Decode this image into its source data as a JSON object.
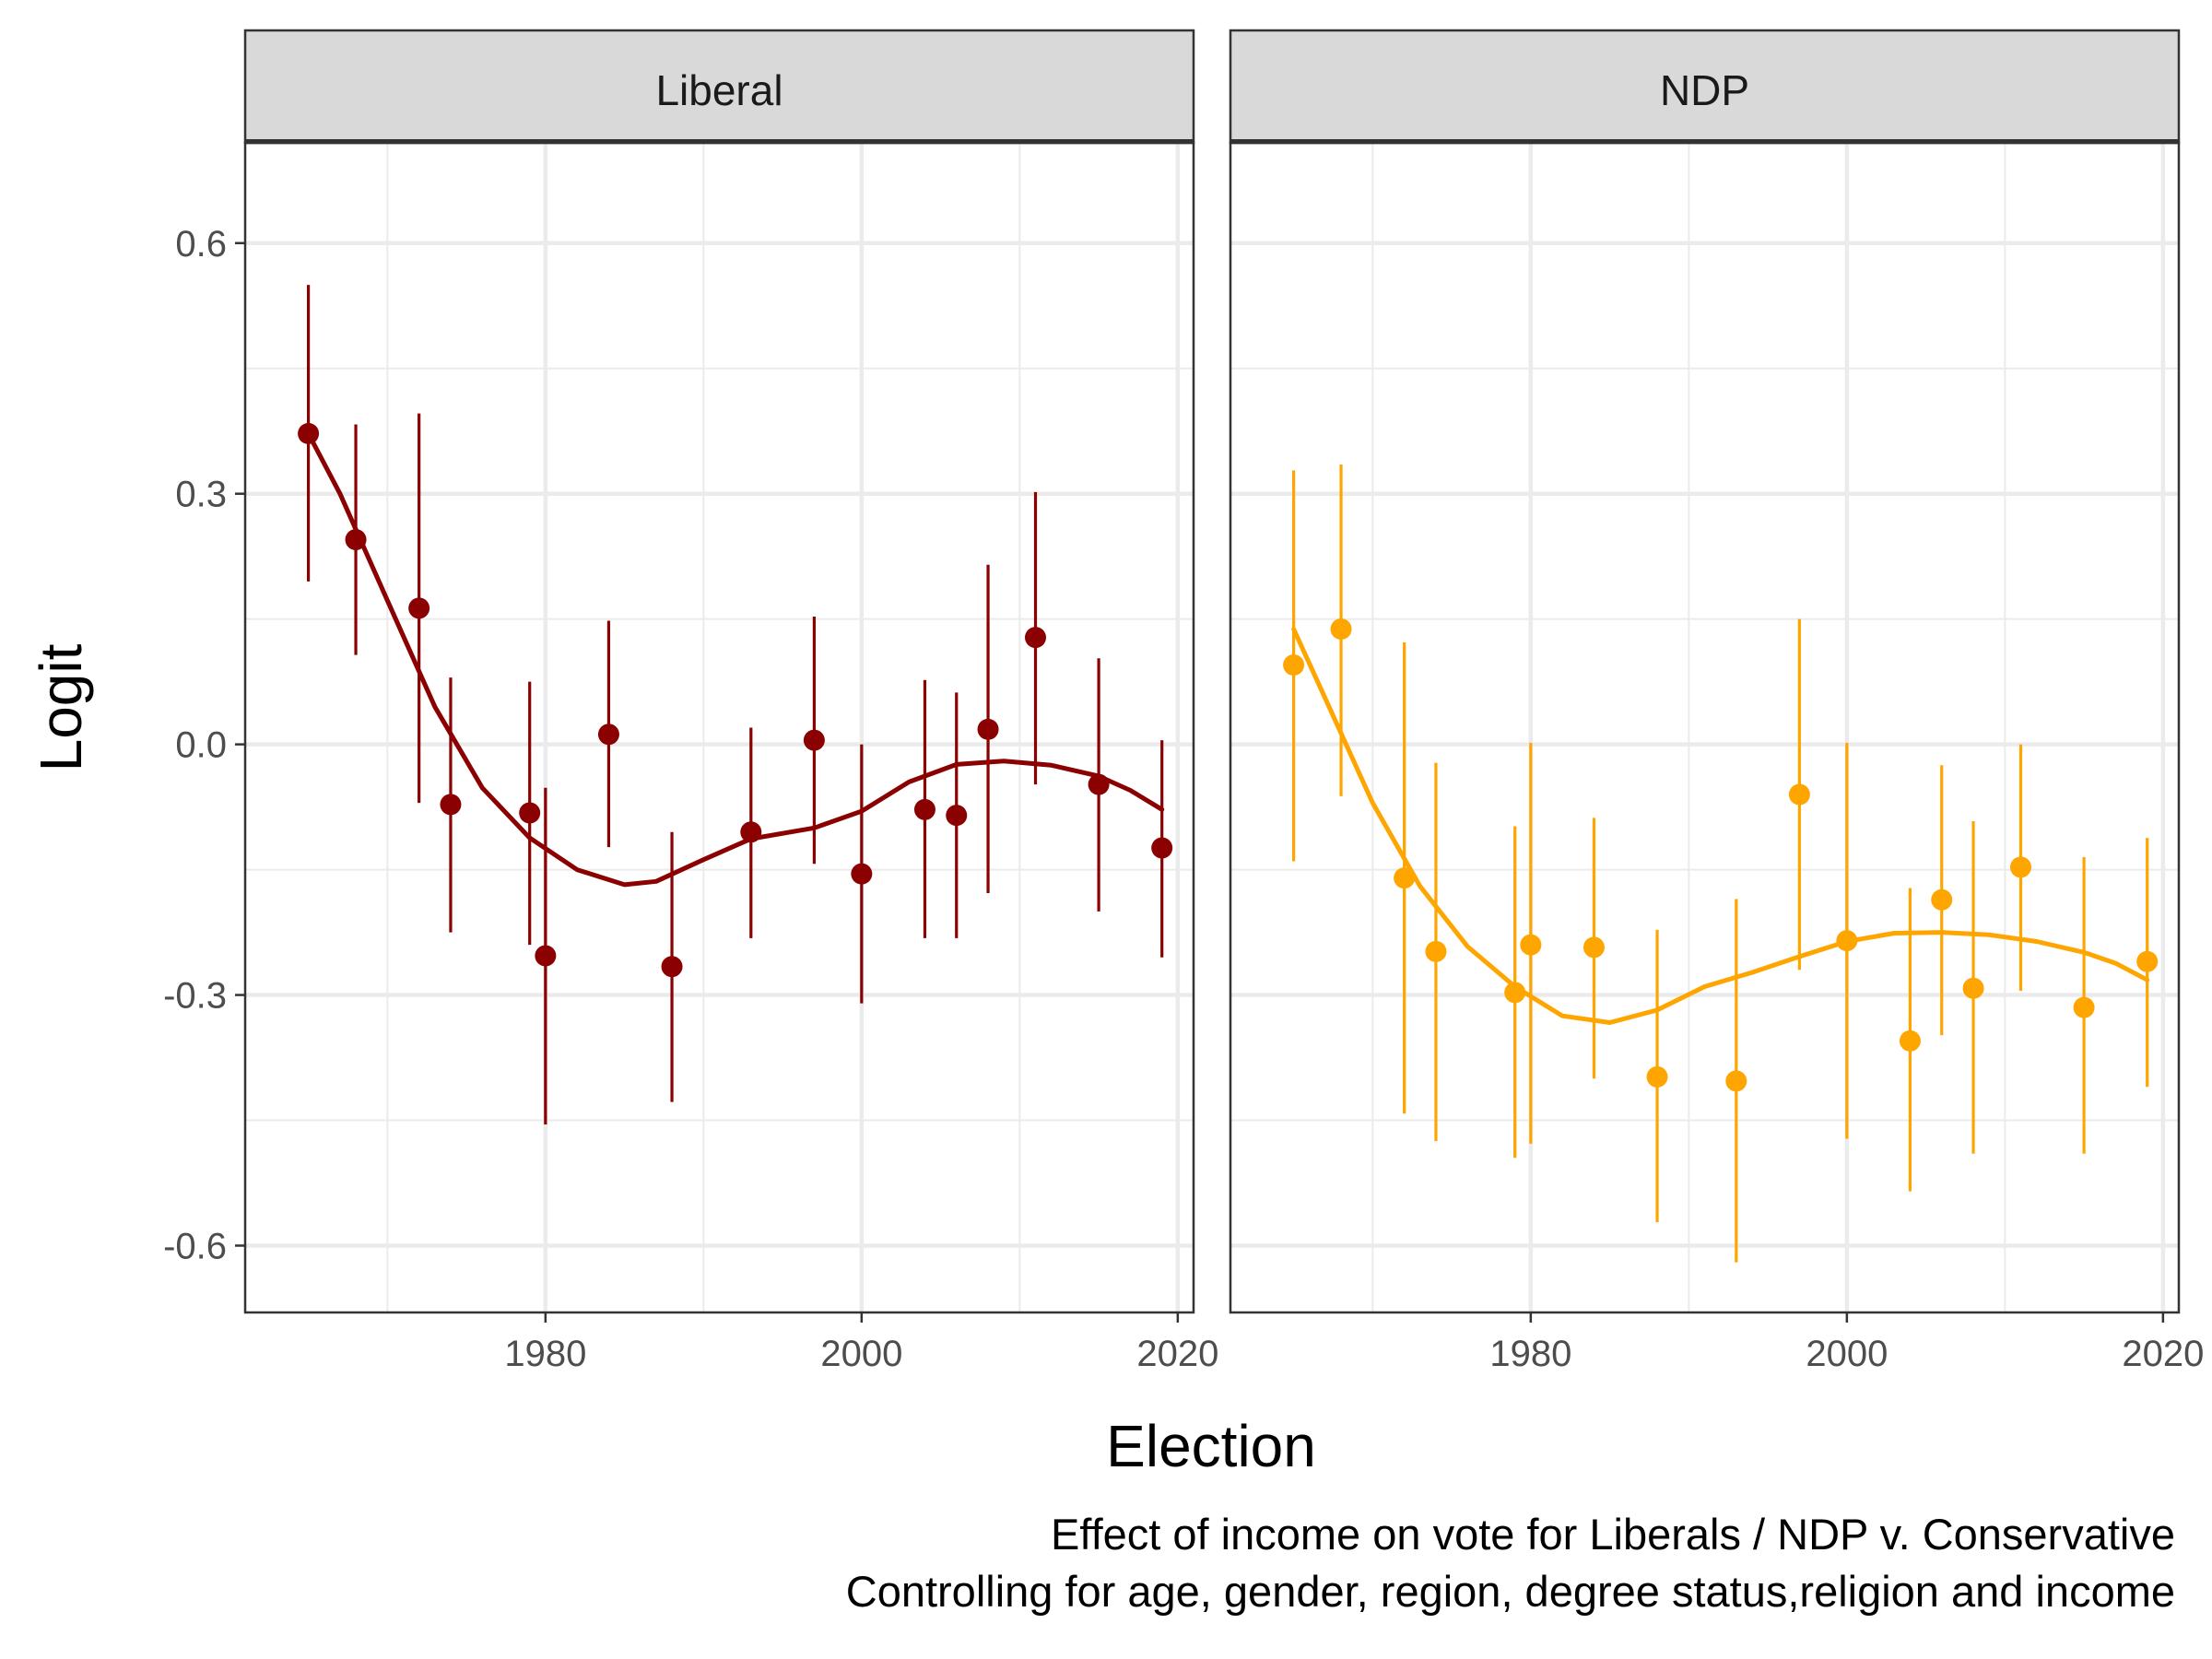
{
  "chart_data": {
    "type": "scatter",
    "xlabel": "Election",
    "ylabel": "Logit",
    "xlim": [
      1961,
      2021
    ],
    "ylim": [
      -0.68,
      0.72
    ],
    "x_ticks": [
      1980,
      2000,
      2020
    ],
    "x_tick_labels": [
      "1980",
      "2000",
      "2020"
    ],
    "x_minor_ticks": [
      1970,
      1990,
      2010
    ],
    "y_ticks": [
      -0.6,
      -0.3,
      0.0,
      0.3,
      0.6
    ],
    "y_tick_labels": [
      "-0.6",
      "-0.3",
      "0.0",
      "0.3",
      "0.6"
    ],
    "y_minor_ticks": [
      -0.45,
      -0.15,
      0.15,
      0.45
    ],
    "grid": true,
    "caption": [
      "Effect of income on vote for Liberals / NDP v. Conservative",
      "Controlling for age, gender, region, degree status,religion and income"
    ],
    "panels": [
      {
        "name": "Liberal",
        "color": "#8B0000",
        "points": [
          {
            "x": 1965,
            "y": 0.372,
            "lo": 0.195,
            "hi": 0.55
          },
          {
            "x": 1968,
            "y": 0.245,
            "lo": 0.107,
            "hi": 0.383
          },
          {
            "x": 1972,
            "y": 0.163,
            "lo": -0.07,
            "hi": 0.396
          },
          {
            "x": 1974,
            "y": -0.072,
            "lo": -0.225,
            "hi": 0.08
          },
          {
            "x": 1979,
            "y": -0.082,
            "lo": -0.24,
            "hi": 0.075
          },
          {
            "x": 1980,
            "y": -0.253,
            "lo": -0.455,
            "hi": -0.052
          },
          {
            "x": 1984,
            "y": 0.012,
            "lo": -0.123,
            "hi": 0.148
          },
          {
            "x": 1988,
            "y": -0.266,
            "lo": -0.428,
            "hi": -0.105
          },
          {
            "x": 1993,
            "y": -0.105,
            "lo": -0.232,
            "hi": 0.02
          },
          {
            "x": 1997,
            "y": 0.005,
            "lo": -0.143,
            "hi": 0.153
          },
          {
            "x": 2000,
            "y": -0.155,
            "lo": -0.31,
            "hi": 0.0
          },
          {
            "x": 2004,
            "y": -0.078,
            "lo": -0.232,
            "hi": 0.077
          },
          {
            "x": 2006,
            "y": -0.085,
            "lo": -0.232,
            "hi": 0.062
          },
          {
            "x": 2008,
            "y": 0.018,
            "lo": -0.178,
            "hi": 0.215
          },
          {
            "x": 2011,
            "y": 0.128,
            "lo": -0.048,
            "hi": 0.302
          },
          {
            "x": 2015,
            "y": -0.048,
            "lo": -0.2,
            "hi": 0.103
          },
          {
            "x": 2019,
            "y": -0.124,
            "lo": -0.255,
            "hi": 0.005
          }
        ],
        "smooth": [
          [
            1965,
            0.372
          ],
          [
            1967,
            0.3
          ],
          [
            1970,
            0.172
          ],
          [
            1973,
            0.045
          ],
          [
            1976,
            -0.052
          ],
          [
            1979,
            -0.112
          ],
          [
            1982,
            -0.15
          ],
          [
            1985,
            -0.168
          ],
          [
            1987,
            -0.164
          ],
          [
            1990,
            -0.138
          ],
          [
            1993,
            -0.113
          ],
          [
            1997,
            -0.1
          ],
          [
            2000,
            -0.08
          ],
          [
            2003,
            -0.045
          ],
          [
            2006,
            -0.024
          ],
          [
            2009,
            -0.02
          ],
          [
            2012,
            -0.025
          ],
          [
            2015,
            -0.038
          ],
          [
            2017,
            -0.055
          ],
          [
            2019,
            -0.078
          ]
        ]
      },
      {
        "name": "NDP",
        "color": "#FFA500",
        "points": [
          {
            "x": 1965,
            "y": 0.095,
            "lo": -0.14,
            "hi": 0.328
          },
          {
            "x": 1968,
            "y": 0.138,
            "lo": -0.062,
            "hi": 0.335
          },
          {
            "x": 1972,
            "y": -0.16,
            "lo": -0.442,
            "hi": 0.122
          },
          {
            "x": 1974,
            "y": -0.248,
            "lo": -0.475,
            "hi": -0.022
          },
          {
            "x": 1979,
            "y": -0.297,
            "lo": -0.495,
            "hi": -0.098
          },
          {
            "x": 1980,
            "y": -0.24,
            "lo": -0.478,
            "hi": 0.002
          },
          {
            "x": 1984,
            "y": -0.243,
            "lo": -0.4,
            "hi": -0.088
          },
          {
            "x": 1988,
            "y": -0.398,
            "lo": -0.572,
            "hi": -0.222
          },
          {
            "x": 1993,
            "y": -0.403,
            "lo": -0.62,
            "hi": -0.185
          },
          {
            "x": 1997,
            "y": -0.06,
            "lo": -0.27,
            "hi": 0.15
          },
          {
            "x": 2000,
            "y": -0.235,
            "lo": -0.472,
            "hi": 0.002
          },
          {
            "x": 2004,
            "y": -0.355,
            "lo": -0.535,
            "hi": -0.172
          },
          {
            "x": 2006,
            "y": -0.186,
            "lo": -0.348,
            "hi": -0.025
          },
          {
            "x": 2008,
            "y": -0.292,
            "lo": -0.49,
            "hi": -0.092
          },
          {
            "x": 2011,
            "y": -0.147,
            "lo": -0.295,
            "hi": 0.0
          },
          {
            "x": 2015,
            "y": -0.315,
            "lo": -0.49,
            "hi": -0.135
          },
          {
            "x": 2019,
            "y": -0.26,
            "lo": -0.41,
            "hi": -0.112
          }
        ],
        "smooth": [
          [
            1965,
            0.138
          ],
          [
            1967,
            0.055
          ],
          [
            1970,
            -0.07
          ],
          [
            1973,
            -0.17
          ],
          [
            1976,
            -0.242
          ],
          [
            1979,
            -0.29
          ],
          [
            1982,
            -0.325
          ],
          [
            1985,
            -0.333
          ],
          [
            1988,
            -0.318
          ],
          [
            1991,
            -0.29
          ],
          [
            1994,
            -0.273
          ],
          [
            1997,
            -0.254
          ],
          [
            2000,
            -0.236
          ],
          [
            2003,
            -0.226
          ],
          [
            2006,
            -0.225
          ],
          [
            2009,
            -0.228
          ],
          [
            2012,
            -0.236
          ],
          [
            2015,
            -0.249
          ],
          [
            2017,
            -0.262
          ],
          [
            2019,
            -0.282
          ]
        ]
      }
    ]
  }
}
